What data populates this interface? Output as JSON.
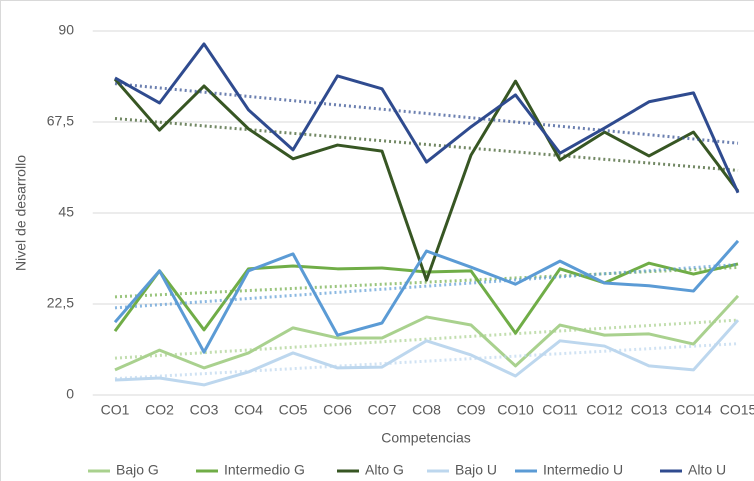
{
  "chart_data": {
    "type": "line",
    "y_label": "Nivel de desarrollo",
    "x_label": "Competencias",
    "categories": [
      "CO1",
      "CO2",
      "CO3",
      "CO4",
      "CO5",
      "CO6",
      "CO7",
      "CO8",
      "CO9",
      "CO10",
      "CO11",
      "CO12",
      "CO13",
      "CO14",
      "CO15"
    ],
    "ylim": [
      0,
      90
    ],
    "yticks": [
      0,
      {
        "value": 22.5,
        "label": "22,5"
      },
      45,
      {
        "value": 67.5,
        "label": "67,5"
      },
      90
    ],
    "grid": true,
    "trendline": true,
    "legend": "bottom",
    "series": [
      {
        "name": "Bajo G",
        "color": "#a9d18e",
        "values": [
          6.2,
          11.1,
          6.7,
          10.4,
          16.6,
          14.1,
          14.1,
          19.3,
          17.3,
          7.2,
          17.3,
          14.8,
          15.1,
          12.6,
          24.5
        ]
      },
      {
        "name": "Intermedio G",
        "color": "#70ad47",
        "values": [
          15.8,
          30.7,
          16.1,
          31.2,
          31.9,
          31.2,
          31.4,
          30.4,
          30.7,
          15.3,
          31.2,
          27.7,
          32.6,
          29.9,
          32.4
        ]
      },
      {
        "name": "Alto G",
        "color": "#375623",
        "values": [
          78.1,
          65.5,
          76.4,
          65.8,
          58.4,
          61.8,
          60.3,
          28.4,
          59.3,
          77.6,
          58.1,
          65,
          59.1,
          65,
          50.4
        ]
      },
      {
        "name": "Bajo U",
        "color": "#bdd7ee",
        "values": [
          3.7,
          4.2,
          2.5,
          5.7,
          10.4,
          6.7,
          6.9,
          13.4,
          9.9,
          4.7,
          13.4,
          12.1,
          7.2,
          6.2,
          18.5
        ]
      },
      {
        "name": "Intermedio U",
        "color": "#5b9bd5",
        "values": [
          18,
          30.7,
          10.6,
          30.7,
          34.9,
          14.8,
          17.8,
          35.6,
          31.6,
          27.4,
          33.1,
          27.7,
          27,
          25.7,
          38.1
        ]
      },
      {
        "name": "Alto U",
        "color": "#2f4b8f",
        "values": [
          78.4,
          72.2,
          86.8,
          70.5,
          60.6,
          78.9,
          75.7,
          57.6,
          66.3,
          74.2,
          59.8,
          66,
          72.5,
          74.7,
          50
        ]
      }
    ]
  }
}
